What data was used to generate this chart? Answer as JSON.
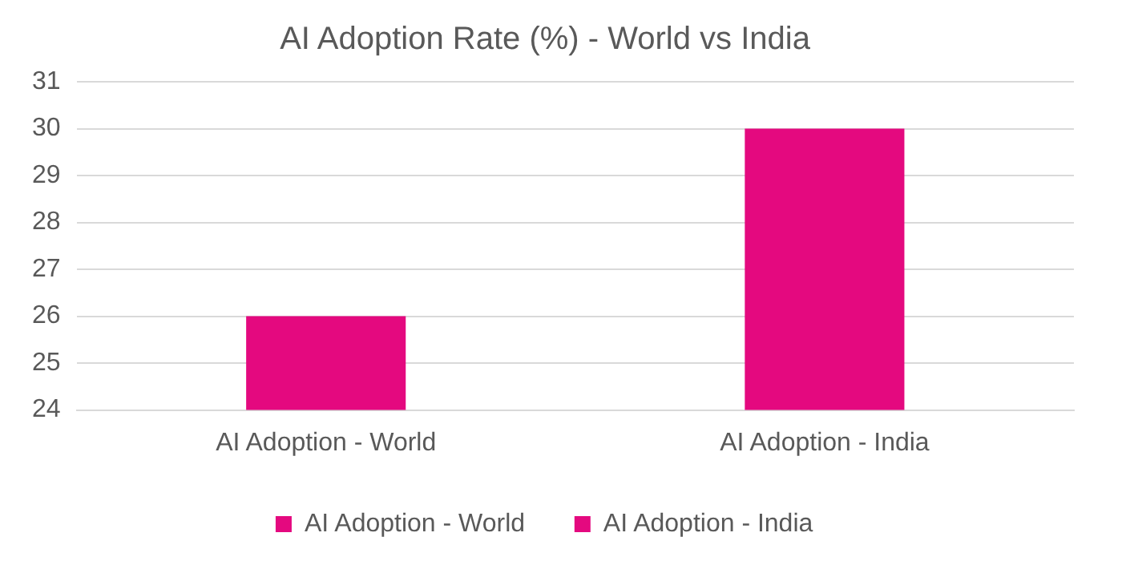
{
  "chart_data": {
    "type": "bar",
    "title": "AI Adoption Rate (%) - World vs India",
    "categories": [
      "AI Adoption - World",
      "AI Adoption - India"
    ],
    "series": [
      {
        "name": "AI Adoption - World",
        "color": "#e4097f",
        "values": [
          26,
          null
        ]
      },
      {
        "name": "AI Adoption - India",
        "color": "#e4097f",
        "values": [
          null,
          30
        ]
      }
    ],
    "ylim": [
      24,
      31
    ],
    "yticks": [
      24,
      25,
      26,
      27,
      28,
      29,
      30,
      31
    ],
    "grid": "y",
    "legend": "bottom"
  }
}
